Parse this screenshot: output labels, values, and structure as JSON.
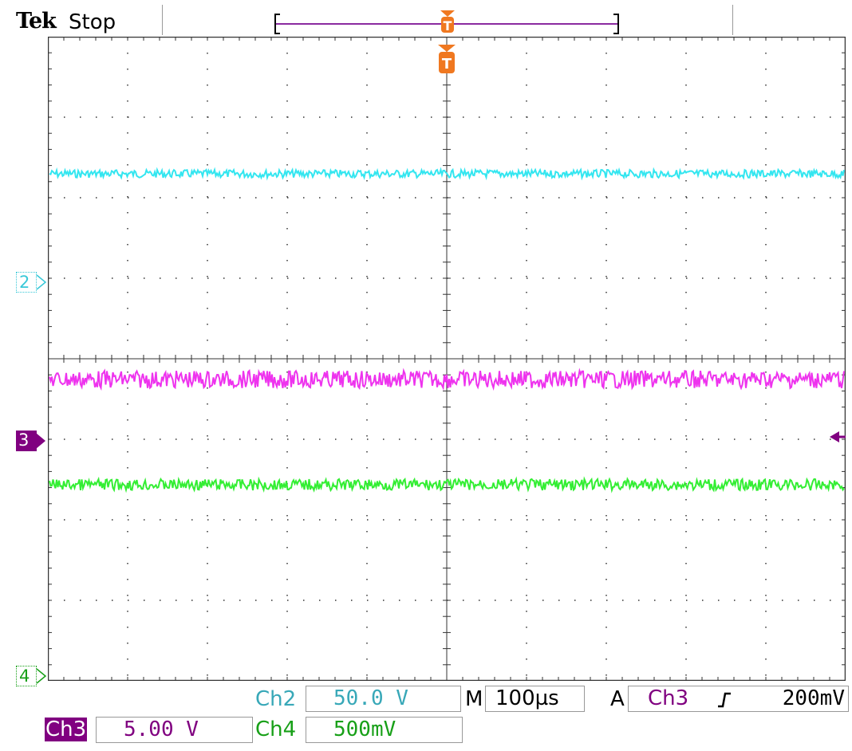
{
  "header": {
    "brand": "Tek",
    "acquisition_status": "Stop"
  },
  "trigger": {
    "marker_label": "T",
    "position_icon": "trigger-position-icon",
    "level_icon": "trigger-level-arrow-icon"
  },
  "channels": [
    {
      "id": "ch2",
      "marker": "2",
      "color": "#38c8d8",
      "trace_color": "#33e6f0"
    },
    {
      "id": "ch3",
      "marker": "3",
      "color": "#800080",
      "trace_color": "#ee33ee"
    },
    {
      "id": "ch4",
      "marker": "4",
      "color": "#18a018",
      "trace_color": "#33ee33"
    }
  ],
  "readouts": {
    "ch2": {
      "name": "Ch2",
      "scale": "50.0 V"
    },
    "ch3": {
      "name": "Ch3",
      "scale": "5.00 V"
    },
    "ch4": {
      "name": "Ch4",
      "scale": "500mV"
    },
    "timebase": {
      "prefix": "M",
      "value": "100µs"
    },
    "trigger": {
      "prefix": "A",
      "source": "Ch3",
      "slope_icon": "rising-edge-icon",
      "level": "200mV"
    }
  },
  "colors": {
    "trigger": "#f07820",
    "record_bar": "#8a2aa0",
    "grid": "#333333"
  }
}
